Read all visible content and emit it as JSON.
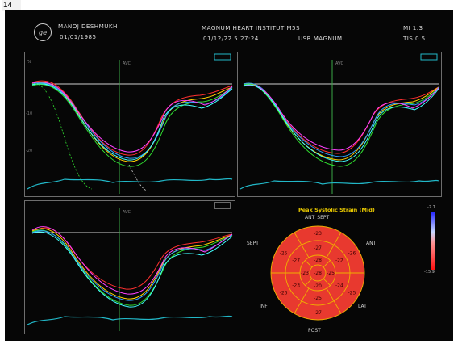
{
  "figure_number": "14",
  "header": {
    "patient_name": "MANOJ DESHMUKH",
    "dob": "01/01/1985",
    "institution": "MAGNUM HEART INSTITUT M5S",
    "datetime": "01/12/22 5:27:24",
    "user": "USR MAGNUM",
    "mi": "MI 1.3",
    "ti": "TIS 0.5",
    "logo_icon": "ge-logo-icon"
  },
  "bullseye": {
    "title": "Peak Systolic Strain (Mid)",
    "labels": {
      "ant_sept": "ANT_SEPT",
      "sept": "SEPT",
      "ant": "ANT",
      "inf": "INF",
      "lat": "LAT",
      "post": "POST"
    },
    "segment_values": {
      "outer": [
        "-23",
        "-26",
        "-25",
        "-27",
        "-26",
        "-25"
      ],
      "middle": [
        "-27",
        "-22",
        "-24",
        "-25",
        "-23",
        "-27"
      ],
      "inner": [
        "-28",
        "-25",
        "-20",
        "-23"
      ],
      "apex": "-28"
    },
    "fill_color": "#e8392f",
    "scale_top": "-2.7",
    "scale_bottom": "-15.9"
  },
  "panel_colors": [
    "#ff3030",
    "#ffd000",
    "#30e030",
    "#30a0ff",
    "#ff40ff",
    "#40ffff"
  ]
}
